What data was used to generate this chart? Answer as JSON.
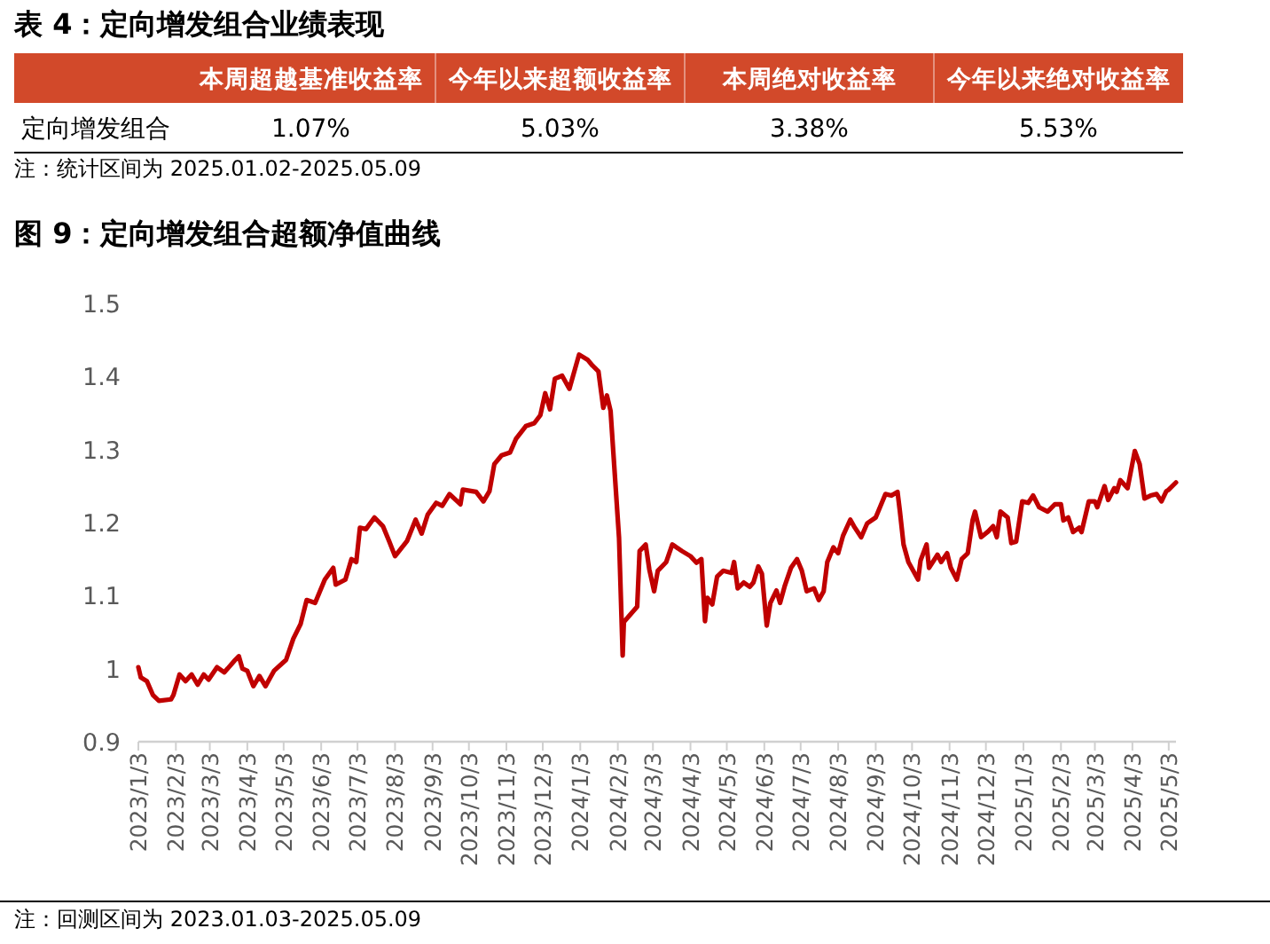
{
  "chart_data": [
    {
      "type": "other",
      "title": "表 4：定向增发组合业绩表现",
      "color": "#d2492a",
      "categories": [
        "本周超越基准收益率",
        "今年以来超额收益率",
        "本周绝对收益率",
        "今年以来绝对收益率"
      ],
      "y_categories": [
        "定向增发组合"
      ],
      "cell_labels": [
        [
          "1.07%",
          "5.03%",
          "3.38%",
          "5.53%"
        ]
      ],
      "annotations": [
        "注：统计区间为 2025.01.02-2025.05.09"
      ]
    },
    {
      "type": "line",
      "title": "图 9：定向增发组合超额净值曲线",
      "grid": false,
      "marker": "none",
      "line_style": "solid",
      "xlim": [
        "2023-01-03",
        "2025-05-09"
      ],
      "ylim": [
        0.9,
        1.5
      ],
      "yticks": [
        0.9,
        1,
        1.1,
        1.2,
        1.3,
        1.4,
        1.5
      ],
      "xticks": [
        {
          "value": "2023-01-03",
          "label": "2023/1/3"
        },
        {
          "value": "2023-02-03",
          "label": "2023/2/3"
        },
        {
          "value": "2023-03-03",
          "label": "2023/3/3"
        },
        {
          "value": "2023-04-03",
          "label": "2023/4/3"
        },
        {
          "value": "2023-05-03",
          "label": "2023/5/3"
        },
        {
          "value": "2023-06-03",
          "label": "2023/6/3"
        },
        {
          "value": "2023-07-03",
          "label": "2023/7/3"
        },
        {
          "value": "2023-08-03",
          "label": "2023/8/3"
        },
        {
          "value": "2023-09-03",
          "label": "2023/9/3"
        },
        {
          "value": "2023-10-03",
          "label": "2023/10/3"
        },
        {
          "value": "2023-11-03",
          "label": "2023/11/3"
        },
        {
          "value": "2023-12-03",
          "label": "2023/12/3"
        },
        {
          "value": "2024-01-03",
          "label": "2024/1/3"
        },
        {
          "value": "2024-02-03",
          "label": "2024/2/3"
        },
        {
          "value": "2024-03-03",
          "label": "2024/3/3"
        },
        {
          "value": "2024-04-03",
          "label": "2024/4/3"
        },
        {
          "value": "2024-05-03",
          "label": "2024/5/3"
        },
        {
          "value": "2024-06-03",
          "label": "2024/6/3"
        },
        {
          "value": "2024-07-03",
          "label": "2024/7/3"
        },
        {
          "value": "2024-08-03",
          "label": "2024/8/3"
        },
        {
          "value": "2024-09-03",
          "label": "2024/9/3"
        },
        {
          "value": "2024-10-03",
          "label": "2024/10/3"
        },
        {
          "value": "2024-11-03",
          "label": "2024/11/3"
        },
        {
          "value": "2024-12-03",
          "label": "2024/12/3"
        },
        {
          "value": "2025-01-03",
          "label": "2025/1/3"
        },
        {
          "value": "2025-02-03",
          "label": "2025/2/3"
        },
        {
          "value": "2025-03-03",
          "label": "2025/3/3"
        },
        {
          "value": "2025-04-03",
          "label": "2025/4/3"
        },
        {
          "value": "2025-05-03",
          "label": "2025/5/3"
        }
      ],
      "annotations": [
        "注：回测区间为 2023.01.03-2025.05.09"
      ],
      "series": [
        {
          "color": "#c00000",
          "x": [
            "2023-01-03",
            "2023-01-05",
            "2023-01-10",
            "2023-01-15",
            "2023-01-20",
            "2023-01-30",
            "2023-02-01",
            "2023-02-06",
            "2023-02-11",
            "2023-02-16",
            "2023-02-21",
            "2023-02-26",
            "2023-03-02",
            "2023-03-09",
            "2023-03-15",
            "2023-03-24",
            "2023-03-27",
            "2023-03-30",
            "2023-04-03",
            "2023-04-08",
            "2023-04-13",
            "2023-04-18",
            "2023-04-25",
            "2023-05-05",
            "2023-05-11",
            "2023-05-17",
            "2023-05-22",
            "2023-05-29",
            "2023-06-06",
            "2023-06-13",
            "2023-06-15",
            "2023-06-23",
            "2023-06-28",
            "2023-07-02",
            "2023-07-05",
            "2023-07-10",
            "2023-07-17",
            "2023-07-24",
            "2023-07-29",
            "2023-08-03",
            "2023-08-13",
            "2023-08-20",
            "2023-08-25",
            "2023-08-30",
            "2023-09-06",
            "2023-09-11",
            "2023-09-17",
            "2023-09-26",
            "2023-09-28",
            "2023-10-09",
            "2023-10-15",
            "2023-10-20",
            "2023-10-24",
            "2023-10-30",
            "2023-11-06",
            "2023-11-11",
            "2023-11-19",
            "2023-11-26",
            "2023-12-01",
            "2023-12-05",
            "2023-12-09",
            "2023-12-13",
            "2023-12-19",
            "2023-12-25",
            "2024-01-02",
            "2024-01-09",
            "2024-01-13",
            "2024-01-18",
            "2024-01-22",
            "2024-01-25",
            "2024-01-28",
            "2024-02-04",
            "2024-02-07",
            "2024-02-08",
            "2024-02-19",
            "2024-02-21",
            "2024-02-26",
            "2024-02-29",
            "2024-03-04",
            "2024-03-07",
            "2024-03-14",
            "2024-03-19",
            "2024-03-27",
            "2024-04-03",
            "2024-04-08",
            "2024-04-12",
            "2024-04-15",
            "2024-04-17",
            "2024-04-21",
            "2024-04-25",
            "2024-04-30",
            "2024-05-07",
            "2024-05-09",
            "2024-05-12",
            "2024-05-17",
            "2024-05-22",
            "2024-05-25",
            "2024-05-29",
            "2024-06-01",
            "2024-06-05",
            "2024-06-08",
            "2024-06-13",
            "2024-06-16",
            "2024-06-20",
            "2024-06-25",
            "2024-06-30",
            "2024-07-04",
            "2024-07-08",
            "2024-07-14",
            "2024-07-18",
            "2024-07-22",
            "2024-07-25",
            "2024-07-30",
            "2024-08-03",
            "2024-08-07",
            "2024-08-13",
            "2024-08-16",
            "2024-08-22",
            "2024-08-27",
            "2024-09-03",
            "2024-09-11",
            "2024-09-16",
            "2024-09-21",
            "2024-09-23",
            "2024-09-26",
            "2024-09-30",
            "2024-10-08",
            "2024-10-10",
            "2024-10-15",
            "2024-10-17",
            "2024-10-24",
            "2024-10-27",
            "2024-11-01",
            "2024-11-04",
            "2024-11-09",
            "2024-11-13",
            "2024-11-18",
            "2024-11-22",
            "2024-11-24",
            "2024-11-29",
            "2024-12-05",
            "2024-12-09",
            "2024-12-12",
            "2024-12-15",
            "2024-12-21",
            "2024-12-24",
            "2024-12-28",
            "2025-01-02",
            "2025-01-07",
            "2025-01-11",
            "2025-01-16",
            "2025-01-23",
            "2025-01-29",
            "2025-02-03",
            "2025-02-05",
            "2025-02-09",
            "2025-02-13",
            "2025-02-18",
            "2025-02-20",
            "2025-02-24",
            "2025-02-26",
            "2025-03-03",
            "2025-03-05",
            "2025-03-11",
            "2025-03-14",
            "2025-03-19",
            "2025-03-21",
            "2025-03-24",
            "2025-03-30",
            "2025-04-05",
            "2025-04-09",
            "2025-04-13",
            "2025-04-18",
            "2025-04-23",
            "2025-04-27",
            "2025-05-01",
            "2025-05-03",
            "2025-05-09"
          ],
          "values": [
            1.002,
            0.988,
            0.983,
            0.964,
            0.956,
            0.958,
            0.964,
            0.992,
            0.983,
            0.992,
            0.978,
            0.992,
            0.985,
            1.002,
            0.995,
            1.012,
            1.017,
            1.0,
            0.997,
            0.976,
            0.99,
            0.976,
            0.997,
            1.012,
            1.041,
            1.061,
            1.094,
            1.09,
            1.122,
            1.138,
            1.115,
            1.122,
            1.15,
            1.146,
            1.193,
            1.191,
            1.207,
            1.195,
            1.175,
            1.154,
            1.175,
            1.204,
            1.185,
            1.211,
            1.227,
            1.223,
            1.239,
            1.225,
            1.245,
            1.242,
            1.229,
            1.243,
            1.28,
            1.292,
            1.296,
            1.315,
            1.332,
            1.336,
            1.347,
            1.377,
            1.355,
            1.397,
            1.401,
            1.383,
            1.43,
            1.423,
            1.415,
            1.407,
            1.357,
            1.374,
            1.353,
            1.179,
            1.018,
            1.064,
            1.085,
            1.161,
            1.17,
            1.136,
            1.106,
            1.134,
            1.146,
            1.17,
            1.161,
            1.154,
            1.145,
            1.15,
            1.065,
            1.097,
            1.088,
            1.126,
            1.134,
            1.131,
            1.146,
            1.11,
            1.118,
            1.112,
            1.118,
            1.14,
            1.13,
            1.059,
            1.09,
            1.107,
            1.09,
            1.114,
            1.138,
            1.15,
            1.134,
            1.106,
            1.11,
            1.094,
            1.106,
            1.146,
            1.166,
            1.158,
            1.182,
            1.204,
            1.195,
            1.18,
            1.199,
            1.207,
            1.239,
            1.237,
            1.242,
            1.215,
            1.17,
            1.146,
            1.122,
            1.148,
            1.17,
            1.138,
            1.156,
            1.146,
            1.158,
            1.138,
            1.122,
            1.15,
            1.158,
            1.203,
            1.215,
            1.18,
            1.188,
            1.195,
            1.18,
            1.215,
            1.207,
            1.172,
            1.174,
            1.229,
            1.227,
            1.237,
            1.221,
            1.215,
            1.225,
            1.225,
            1.203,
            1.207,
            1.187,
            1.193,
            1.187,
            1.215,
            1.229,
            1.229,
            1.221,
            1.25,
            1.231,
            1.247,
            1.242,
            1.258,
            1.247,
            1.298,
            1.28,
            1.233,
            1.237,
            1.239,
            1.229,
            1.243,
            1.245,
            1.255
          ]
        }
      ]
    }
  ]
}
